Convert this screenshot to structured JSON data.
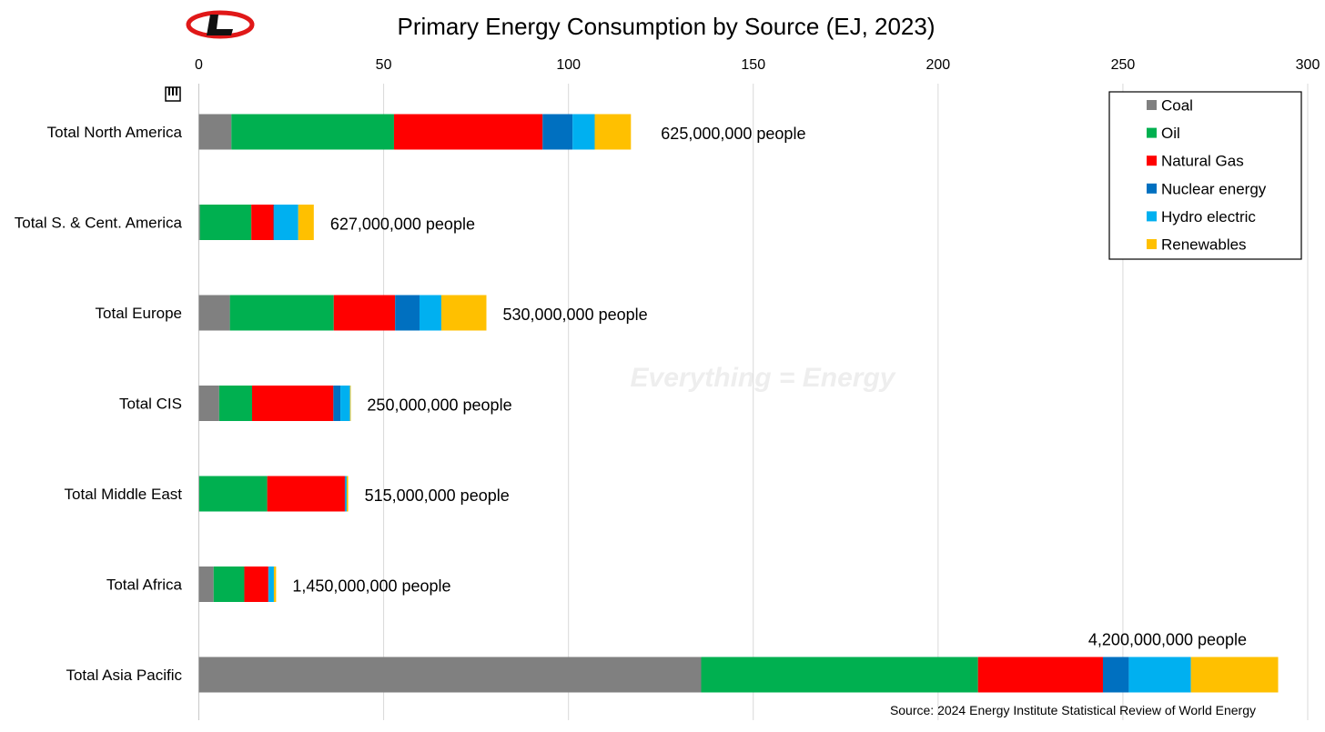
{
  "colors": {
    "Coal": "#808080",
    "Oil": "#00b050",
    "Natural Gas": "#ff0000",
    "Nuclear energy": "#0070c0",
    "Hydro electric": "#00b0f0",
    "Renewables": "#ffc000"
  },
  "watermark": "Everything = Energy",
  "source": "Source: 2024 Energy Institute Statistical Review of World Energy",
  "chart_data": {
    "type": "bar",
    "orientation": "horizontal",
    "stacked": true,
    "title": "Primary Energy Consumption by Source (EJ, 2023)",
    "xlabel": "",
    "ylabel": "",
    "xlim": [
      0,
      300
    ],
    "xticks": [
      0,
      50,
      100,
      150,
      200,
      250,
      300
    ],
    "xtick_labels": [
      "0",
      "50",
      "100",
      "150",
      "200",
      "250",
      "300"
    ],
    "x_axis_position": "top",
    "grid": "vertical",
    "legend_position": "top-right",
    "categories": [
      "Total North America",
      "Total S. & Cent. America",
      "Total Europe",
      "Total CIS",
      "Total Middle East",
      "Total Africa",
      "Total Asia Pacific"
    ],
    "series": [
      {
        "name": "Coal",
        "values": [
          8.8,
          0.3,
          8.4,
          5.5,
          0.1,
          4.0,
          135.9
        ]
      },
      {
        "name": "Oil",
        "values": [
          44.0,
          13.9,
          28.1,
          8.9,
          18.4,
          8.3,
          74.9
        ]
      },
      {
        "name": "Natural Gas",
        "values": [
          40.2,
          6.0,
          16.6,
          22.0,
          21.0,
          6.5,
          33.8
        ]
      },
      {
        "name": "Nuclear energy",
        "values": [
          8.1,
          0.2,
          6.6,
          1.9,
          0.2,
          0.1,
          7.0
        ]
      },
      {
        "name": "Hydro electric",
        "values": [
          6.0,
          6.5,
          5.9,
          2.6,
          0.3,
          1.4,
          16.8
        ]
      },
      {
        "name": "Renewables",
        "values": [
          9.8,
          4.2,
          12.2,
          0.2,
          0.4,
          0.6,
          23.6
        ]
      }
    ],
    "annotations": [
      "625,000,000 people",
      "627,000,000 people",
      "530,000,000 people",
      "250,000,000 people",
      "515,000,000 people",
      "1,450,000,000 people",
      "4,200,000,000 people"
    ]
  }
}
